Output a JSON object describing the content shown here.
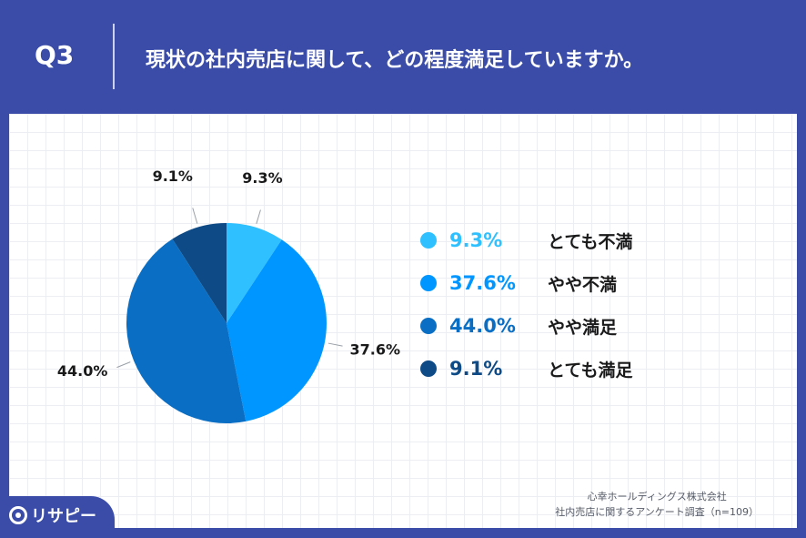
{
  "header": {
    "q_label": "Q3",
    "question": "現状の社内売店に関して、どの程度満足していますか。"
  },
  "chart_data": {
    "type": "pie",
    "title": "",
    "slices": [
      {
        "label": "とても不満",
        "value": 9.3,
        "display": "9.3%",
        "color": "#2ec0ff"
      },
      {
        "label": "やや不満",
        "value": 37.6,
        "display": "37.6%",
        "color": "#0096ff"
      },
      {
        "label": "やや満足",
        "value": 44.0,
        "display": "44.0%",
        "color": "#0a6fc4"
      },
      {
        "label": "とても満足",
        "value": 9.1,
        "display": "9.1%",
        "color": "#0d4a86"
      }
    ],
    "start": "12 o'clock",
    "direction": "clockwise",
    "legend": "right"
  },
  "source": {
    "line1": "心幸ホールディングス株式会社",
    "line2": "社内売店に関するアンケート調査（n=109）"
  },
  "logo": {
    "text": "リサピー"
  }
}
